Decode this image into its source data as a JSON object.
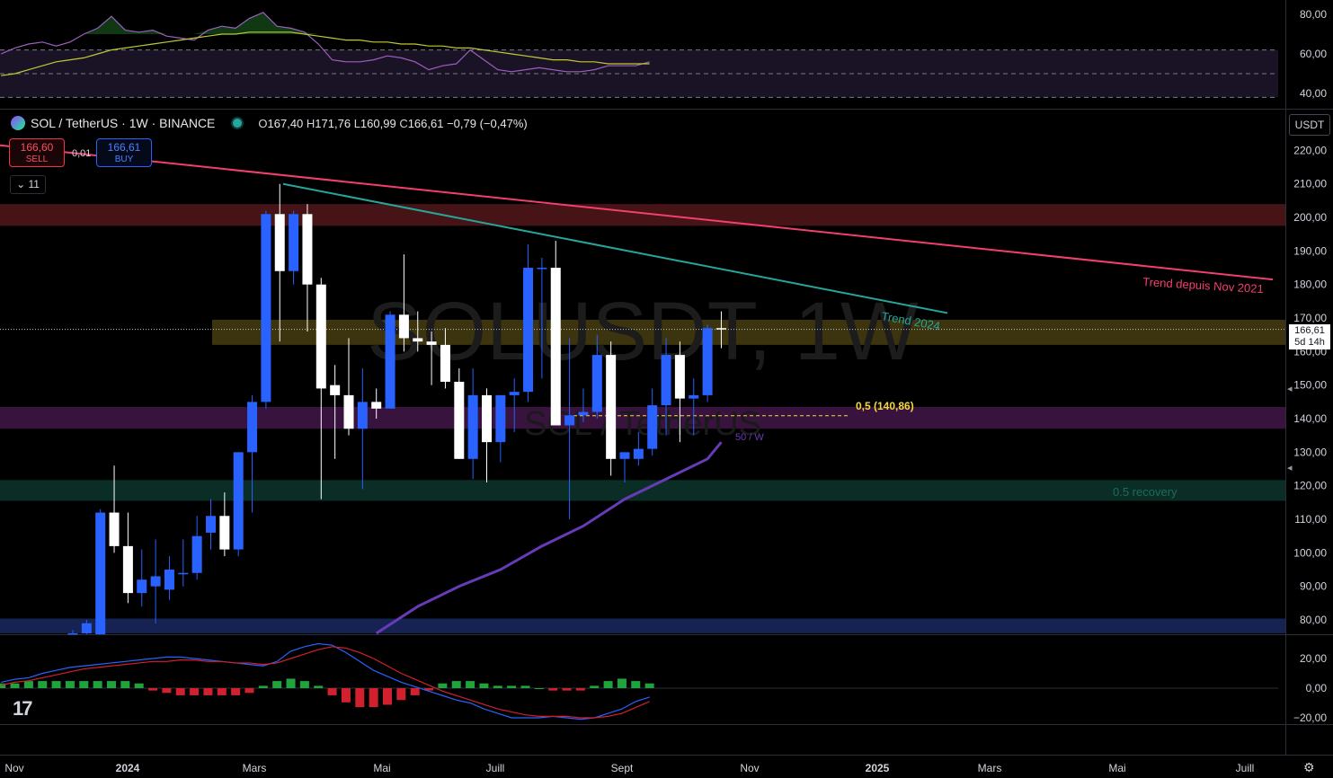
{
  "symbol": {
    "pair": "SOL / TetherUS · 1W · BINANCE",
    "ohlc": [
      {
        "k": "O",
        "v": "167,40"
      },
      {
        "k": "H",
        "v": "171,76"
      },
      {
        "k": "L",
        "v": "160,99"
      },
      {
        "k": "C",
        "v": "166,61"
      }
    ],
    "change": "−0,79 (−0,47%)",
    "watermark": "SOLUSDT, 1W",
    "watermark_sub": "SOL / TetherUS"
  },
  "trade": {
    "sell_price": "166,60",
    "sell_label": "SELL",
    "spread": "0,01",
    "buy_price": "166,61",
    "buy_label": "BUY"
  },
  "indicator_counter": "11",
  "currency_button": "USDT",
  "last_price": {
    "value": "166,61",
    "countdown": "5d 14h"
  },
  "colors": {
    "up": "#2962ff",
    "down": "#ffffff",
    "trend2021": "#f23f6e",
    "trend2024": "#26a69a",
    "ma50": "#673ab7",
    "rsi": "#9c5fbf",
    "rsi_ma": "#c0ca33"
  },
  "chart_data": [
    {
      "type": "candlestick",
      "title": "SOL / TetherUS · 1W · BINANCE",
      "x_ticks": [
        "Nov",
        "2024",
        "Mars",
        "Mai",
        "Juill",
        "Sept",
        "Nov",
        "2025",
        "Mars",
        "Mai",
        "Juill"
      ],
      "y_ticks": [
        "220,00",
        "210,00",
        "200,00",
        "190,00",
        "180,00",
        "170,00",
        "160,00",
        "150,00",
        "140,00",
        "130,00",
        "120,00",
        "110,00",
        "100,00",
        "90,00",
        "80,00"
      ],
      "ylim": [
        76,
        224
      ],
      "candles": [
        {
          "o": 57,
          "h": 77,
          "l": 55,
          "c": 76
        },
        {
          "o": 76,
          "h": 80,
          "l": 70,
          "c": 79
        },
        {
          "o": 75,
          "h": 113,
          "l": 73,
          "c": 112
        },
        {
          "o": 112,
          "h": 126,
          "l": 100,
          "c": 102
        },
        {
          "o": 102,
          "h": 112,
          "l": 85,
          "c": 88
        },
        {
          "o": 88,
          "h": 101,
          "l": 84,
          "c": 92
        },
        {
          "o": 90,
          "h": 104,
          "l": 79,
          "c": 93
        },
        {
          "o": 89,
          "h": 99,
          "l": 86,
          "c": 95
        },
        {
          "o": 94,
          "h": 104,
          "l": 90,
          "c": 94
        },
        {
          "o": 94,
          "h": 111,
          "l": 92,
          "c": 105
        },
        {
          "o": 106,
          "h": 116,
          "l": 101,
          "c": 111
        },
        {
          "o": 111,
          "h": 118,
          "l": 99,
          "c": 101
        },
        {
          "o": 101,
          "h": 130,
          "l": 99,
          "c": 130
        },
        {
          "o": 130,
          "h": 147,
          "l": 112,
          "c": 145
        },
        {
          "o": 145,
          "h": 202,
          "l": 143,
          "c": 201
        },
        {
          "o": 201,
          "h": 210,
          "l": 163,
          "c": 184
        },
        {
          "o": 184,
          "h": 202,
          "l": 180,
          "c": 201
        },
        {
          "o": 201,
          "h": 204,
          "l": 166,
          "c": 180
        },
        {
          "o": 180,
          "h": 182,
          "l": 116,
          "c": 149
        },
        {
          "o": 150,
          "h": 156,
          "l": 128,
          "c": 147
        },
        {
          "o": 147,
          "h": 164,
          "l": 135,
          "c": 137
        },
        {
          "o": 137,
          "h": 155,
          "l": 119,
          "c": 145
        },
        {
          "o": 145,
          "h": 149,
          "l": 140,
          "c": 143
        },
        {
          "o": 143,
          "h": 172,
          "l": 143,
          "c": 171
        },
        {
          "o": 171,
          "h": 189,
          "l": 160,
          "c": 164
        },
        {
          "o": 164,
          "h": 172,
          "l": 160,
          "c": 163
        },
        {
          "o": 163,
          "h": 166,
          "l": 150,
          "c": 162
        },
        {
          "o": 162,
          "h": 167,
          "l": 149,
          "c": 151
        },
        {
          "o": 151,
          "h": 155,
          "l": 128,
          "c": 128
        },
        {
          "o": 128,
          "h": 155,
          "l": 122,
          "c": 147
        },
        {
          "o": 147,
          "h": 149,
          "l": 121,
          "c": 133
        },
        {
          "o": 133,
          "h": 147,
          "l": 127,
          "c": 147
        },
        {
          "o": 147,
          "h": 152,
          "l": 136,
          "c": 148
        },
        {
          "o": 148,
          "h": 192,
          "l": 145,
          "c": 185
        },
        {
          "o": 185,
          "h": 188,
          "l": 152,
          "c": 185
        },
        {
          "o": 185,
          "h": 193,
          "l": 138,
          "c": 138
        },
        {
          "o": 138,
          "h": 164,
          "l": 110,
          "c": 141
        },
        {
          "o": 141,
          "h": 149,
          "l": 139,
          "c": 142
        },
        {
          "o": 142,
          "h": 165,
          "l": 140,
          "c": 159
        },
        {
          "o": 159,
          "h": 163,
          "l": 123,
          "c": 128
        },
        {
          "o": 128,
          "h": 130,
          "l": 121,
          "c": 130
        },
        {
          "o": 128,
          "h": 136,
          "l": 126,
          "c": 131
        },
        {
          "o": 131,
          "h": 149,
          "l": 129,
          "c": 144
        },
        {
          "o": 144,
          "h": 164,
          "l": 135,
          "c": 159
        },
        {
          "o": 159,
          "h": 163,
          "l": 133,
          "c": 146
        },
        {
          "o": 146,
          "h": 152,
          "l": 135,
          "c": 147
        },
        {
          "o": 147,
          "h": 168,
          "l": 145,
          "c": 167
        },
        {
          "o": 167,
          "h": 172,
          "l": 161,
          "c": 166.61
        }
      ],
      "zones": [
        {
          "from": 197.5,
          "to": 204,
          "color": "#5d1a1e"
        },
        {
          "from": 162,
          "to": 169.5,
          "color": "#6b5f1a"
        },
        {
          "from": 137,
          "to": 143.5,
          "color": "#4a1a52"
        },
        {
          "from": 115.5,
          "to": 121.7,
          "color": "#0d3d33"
        },
        {
          "from": 76,
          "to": 80.4,
          "color": "#1c2d6e"
        }
      ],
      "annotations": [
        {
          "text": "Trend depuis Nov 2021",
          "color": "#f23f6e"
        },
        {
          "text": "Trend 2024",
          "color": "#26a69a"
        },
        {
          "text": "0,5 (140,86)",
          "color": "#f5d742"
        },
        {
          "text": "50 / W",
          "color": "#673ab7"
        },
        {
          "text": "0.5 recovery",
          "color": "#1e6b5c"
        }
      ],
      "fib_level": 140.86,
      "ma50": [
        {
          "i": 22,
          "v": 76
        },
        {
          "i": 25,
          "v": 84
        },
        {
          "i": 28,
          "v": 90
        },
        {
          "i": 31,
          "v": 95
        },
        {
          "i": 34,
          "v": 102
        },
        {
          "i": 37,
          "v": 108
        },
        {
          "i": 40,
          "v": 116
        },
        {
          "i": 43,
          "v": 122
        },
        {
          "i": 46,
          "v": 128
        },
        {
          "i": 47,
          "v": 133
        }
      ]
    },
    {
      "type": "line",
      "title": "",
      "y_ticks": [
        "80,00",
        "60,00",
        "40,00"
      ],
      "ylim": [
        35,
        85
      ],
      "levels": [
        62,
        50,
        38
      ],
      "series": [
        {
          "values": [
            60,
            63,
            65,
            66,
            64,
            66,
            70,
            73,
            79,
            72,
            71,
            72,
            69,
            68,
            67,
            72,
            74,
            73,
            78,
            81,
            74,
            73,
            71,
            65,
            57,
            56,
            56,
            57,
            59,
            58,
            56,
            52,
            54,
            55,
            62,
            57,
            52,
            51,
            52,
            53,
            52,
            51,
            51,
            52,
            54,
            54,
            54,
            56
          ]
        },
        {
          "values": [
            49,
            50,
            52,
            54,
            56,
            57,
            58,
            60,
            62,
            63,
            64,
            65,
            66,
            67,
            68,
            69,
            70,
            70,
            71,
            71,
            71,
            71,
            70,
            69,
            68,
            67,
            67,
            66,
            66,
            65,
            65,
            64,
            64,
            63,
            63,
            62,
            61,
            60,
            59,
            58,
            57,
            57,
            56,
            56,
            55,
            55,
            55,
            55
          ]
        }
      ]
    },
    {
      "type": "bar",
      "title": "",
      "y_ticks": [
        "20,00",
        "0,00",
        "−20,00"
      ],
      "ylim": [
        -30,
        32
      ],
      "histogram": [
        2,
        2,
        3,
        3,
        3,
        3,
        3,
        3,
        3,
        3,
        2,
        -1,
        -2,
        -3,
        -3,
        -3,
        -3,
        -3,
        -2,
        1,
        3,
        4,
        3,
        1,
        -3,
        -6,
        -8,
        -8,
        -7,
        -5,
        -3,
        -1,
        2,
        3,
        3,
        2,
        1,
        1,
        1,
        0,
        -1,
        -1,
        -1,
        1,
        3,
        4,
        3,
        2
      ],
      "series": [
        {
          "values": [
            4,
            6,
            7,
            10,
            12,
            14,
            15,
            16,
            17,
            18,
            19,
            20,
            21,
            21,
            20,
            19,
            18,
            17,
            16,
            15,
            18,
            25,
            28,
            30,
            29,
            24,
            18,
            12,
            8,
            4,
            1,
            -2,
            -5,
            -8,
            -10,
            -14,
            -17,
            -20,
            -20,
            -20,
            -19,
            -20,
            -21,
            -20,
            -17,
            -14,
            -9,
            -6
          ]
        },
        {
          "values": [
            2,
            4,
            5,
            7,
            9,
            11,
            13,
            14,
            15,
            16,
            17,
            18,
            18,
            19,
            19,
            18,
            18,
            17,
            17,
            16,
            17,
            20,
            23,
            26,
            28,
            27,
            24,
            20,
            15,
            10,
            6,
            2,
            -2,
            -5,
            -8,
            -11,
            -14,
            -16,
            -18,
            -19,
            -19,
            -19,
            -20,
            -20,
            -19,
            -17,
            -13,
            -9
          ]
        }
      ]
    }
  ]
}
